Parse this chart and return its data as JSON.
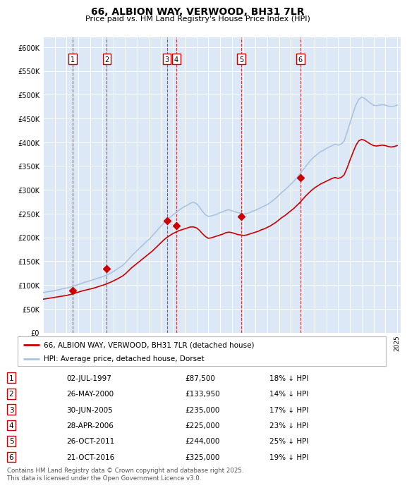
{
  "title": "66, ALBION WAY, VERWOOD, BH31 7LR",
  "subtitle": "Price paid vs. HM Land Registry's House Price Index (HPI)",
  "ylim": [
    0,
    620000
  ],
  "yticks": [
    0,
    50000,
    100000,
    150000,
    200000,
    250000,
    300000,
    350000,
    400000,
    450000,
    500000,
    550000,
    600000
  ],
  "hpi_color": "#aac4e0",
  "price_color": "#cc0000",
  "background_color": "#ffffff",
  "plot_bg_color": "#dce8f5",
  "grid_color": "#ffffff",
  "legend_entries": [
    "66, ALBION WAY, VERWOOD, BH31 7LR (detached house)",
    "HPI: Average price, detached house, Dorset"
  ],
  "sales": [
    {
      "num": 1,
      "date": "02-JUL-1997",
      "year": 1997.5,
      "price": 87500,
      "pct": "18% ↓ HPI"
    },
    {
      "num": 2,
      "date": "26-MAY-2000",
      "year": 2000.4,
      "price": 133950,
      "pct": "14% ↓ HPI"
    },
    {
      "num": 3,
      "date": "30-JUN-2005",
      "year": 2005.5,
      "price": 235000,
      "pct": "17% ↓ HPI"
    },
    {
      "num": 4,
      "date": "28-APR-2006",
      "year": 2006.3,
      "price": 225000,
      "pct": "23% ↓ HPI"
    },
    {
      "num": 5,
      "date": "26-OCT-2011",
      "year": 2011.8,
      "price": 244000,
      "pct": "25% ↓ HPI"
    },
    {
      "num": 6,
      "date": "21-OCT-2016",
      "year": 2016.8,
      "price": 325000,
      "pct": "19% ↓ HPI"
    }
  ],
  "footer": "Contains HM Land Registry data © Crown copyright and database right 2025.\nThis data is licensed under the Open Government Licence v3.0.",
  "hpi_data_years": [
    1995,
    1995.25,
    1995.5,
    1995.75,
    1996,
    1996.25,
    1996.5,
    1996.75,
    1997,
    1997.25,
    1997.5,
    1997.75,
    1998,
    1998.25,
    1998.5,
    1998.75,
    1999,
    1999.25,
    1999.5,
    1999.75,
    2000,
    2000.25,
    2000.5,
    2000.75,
    2001,
    2001.25,
    2001.5,
    2001.75,
    2002,
    2002.25,
    2002.5,
    2002.75,
    2003,
    2003.25,
    2003.5,
    2003.75,
    2004,
    2004.25,
    2004.5,
    2004.75,
    2005,
    2005.25,
    2005.5,
    2005.75,
    2006,
    2006.25,
    2006.5,
    2006.75,
    2007,
    2007.25,
    2007.5,
    2007.75,
    2008,
    2008.25,
    2008.5,
    2008.75,
    2009,
    2009.25,
    2009.5,
    2009.75,
    2010,
    2010.25,
    2010.5,
    2010.75,
    2011,
    2011.25,
    2011.5,
    2011.75,
    2012,
    2012.25,
    2012.5,
    2012.75,
    2013,
    2013.25,
    2013.5,
    2013.75,
    2014,
    2014.25,
    2014.5,
    2014.75,
    2015,
    2015.25,
    2015.5,
    2015.75,
    2016,
    2016.25,
    2016.5,
    2016.75,
    2017,
    2017.25,
    2017.5,
    2017.75,
    2018,
    2018.25,
    2018.5,
    2018.75,
    2019,
    2019.25,
    2019.5,
    2019.75,
    2020,
    2020.25,
    2020.5,
    2020.75,
    2021,
    2021.25,
    2021.5,
    2021.75,
    2022,
    2022.25,
    2022.5,
    2022.75,
    2023,
    2023.25,
    2023.5,
    2023.75,
    2024,
    2024.25,
    2024.5,
    2024.75,
    2025
  ],
  "hpi_values": [
    84000,
    85000,
    86000,
    87000,
    88000,
    89500,
    91000,
    92500,
    93500,
    95000,
    97000,
    99000,
    101000,
    103000,
    105500,
    107000,
    109000,
    111000,
    113000,
    115000,
    117000,
    119500,
    122000,
    125000,
    129000,
    133000,
    137000,
    141000,
    147000,
    154000,
    161000,
    167000,
    173000,
    179000,
    185000,
    191000,
    196000,
    203000,
    210000,
    217000,
    224000,
    231000,
    237000,
    242000,
    247000,
    252000,
    257000,
    261000,
    265000,
    268000,
    272000,
    274000,
    271000,
    264000,
    255000,
    248000,
    244000,
    245000,
    247000,
    249000,
    252000,
    254000,
    257000,
    258000,
    256000,
    254000,
    252000,
    251000,
    249000,
    250000,
    252000,
    255000,
    257000,
    260000,
    263000,
    266000,
    269000,
    273000,
    278000,
    283000,
    289000,
    295000,
    300000,
    306000,
    312000,
    318000,
    325000,
    333000,
    341000,
    349000,
    357000,
    364000,
    370000,
    375000,
    380000,
    383000,
    387000,
    390000,
    393000,
    396000,
    394000,
    396000,
    402000,
    420000,
    440000,
    460000,
    478000,
    490000,
    495000,
    492000,
    487000,
    482000,
    478000,
    477000,
    478000,
    479000,
    478000,
    476000,
    475000,
    476000,
    478000
  ],
  "price_indexed_values": [
    70000,
    71000,
    72000,
    73000,
    74000,
    75000,
    76000,
    77000,
    78000,
    79500,
    81000,
    83000,
    85000,
    87000,
    88500,
    90000,
    91500,
    93000,
    95000,
    97000,
    99000,
    101000,
    103500,
    106000,
    109000,
    112000,
    115500,
    119000,
    124000,
    130000,
    136000,
    141000,
    146000,
    151000,
    156000,
    161000,
    166000,
    171000,
    177000,
    183000,
    189000,
    195000,
    200000,
    204000,
    208000,
    211000,
    214000,
    216000,
    218000,
    220000,
    222000,
    222000,
    220000,
    215000,
    208000,
    202000,
    198000,
    199000,
    201000,
    203000,
    205000,
    207000,
    210000,
    211000,
    210000,
    208000,
    206000,
    205000,
    204000,
    205000,
    207000,
    209000,
    211000,
    213000,
    216000,
    218000,
    221000,
    224000,
    228000,
    232000,
    237000,
    242000,
    246000,
    251000,
    256000,
    261000,
    267000,
    273000,
    280000,
    287000,
    293000,
    299000,
    304000,
    308000,
    312000,
    315000,
    318000,
    321000,
    324000,
    326000,
    324000,
    326000,
    331000,
    345000,
    362000,
    378000,
    393000,
    403000,
    406000,
    404000,
    400000,
    396000,
    393000,
    392000,
    393000,
    394000,
    393000,
    391000,
    390000,
    391000,
    393000
  ]
}
